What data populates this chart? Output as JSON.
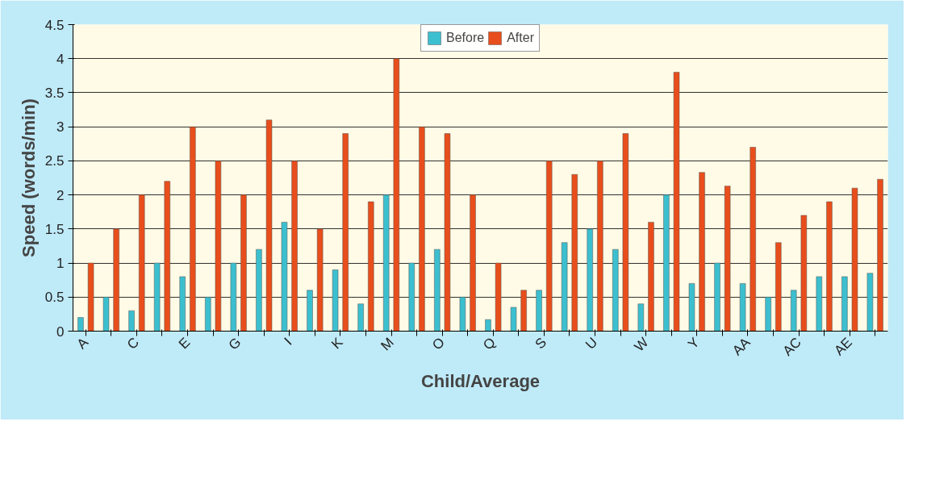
{
  "chart_data": {
    "type": "bar",
    "xlabel": "Child/Average",
    "ylabel": "Speed (words/min)",
    "categories": [
      "A",
      null,
      "C",
      null,
      "E",
      null,
      "G",
      null,
      "I",
      null,
      "K",
      null,
      "M",
      null,
      "O",
      null,
      "Q",
      null,
      "S",
      null,
      "U",
      null,
      "W",
      null,
      "Y",
      null,
      "AA",
      null,
      "AC",
      null,
      "AE",
      null
    ],
    "series": [
      {
        "name": "Before",
        "color": "#3cbfcf",
        "values": [
          0.2,
          0.5,
          0.3,
          1.0,
          0.8,
          0.5,
          1.0,
          1.2,
          1.6,
          0.6,
          0.9,
          0.4,
          2.0,
          1.0,
          1.2,
          0.5,
          0.17,
          0.35,
          0.6,
          1.3,
          1.5,
          1.2,
          0.4,
          2.0,
          0.7,
          1.0,
          0.7,
          0.5,
          0.6,
          0.8,
          0.8,
          0.85
        ]
      },
      {
        "name": "After",
        "color": "#e84e1b",
        "values": [
          1.0,
          1.5,
          2.0,
          2.2,
          3.0,
          2.5,
          2.0,
          3.1,
          2.5,
          1.5,
          2.9,
          1.9,
          4.0,
          3.0,
          2.9,
          2.0,
          1.0,
          0.6,
          2.5,
          2.3,
          2.5,
          2.9,
          1.6,
          3.8,
          2.33,
          2.13,
          2.7,
          1.3,
          1.7,
          1.9,
          2.1,
          2.23
        ]
      }
    ],
    "ylim": [
      0,
      4.5
    ],
    "yticks": [
      0,
      0.5,
      1,
      1.5,
      2,
      2.5,
      3,
      3.5,
      4,
      4.5
    ],
    "grid": "y",
    "legend": "top"
  }
}
